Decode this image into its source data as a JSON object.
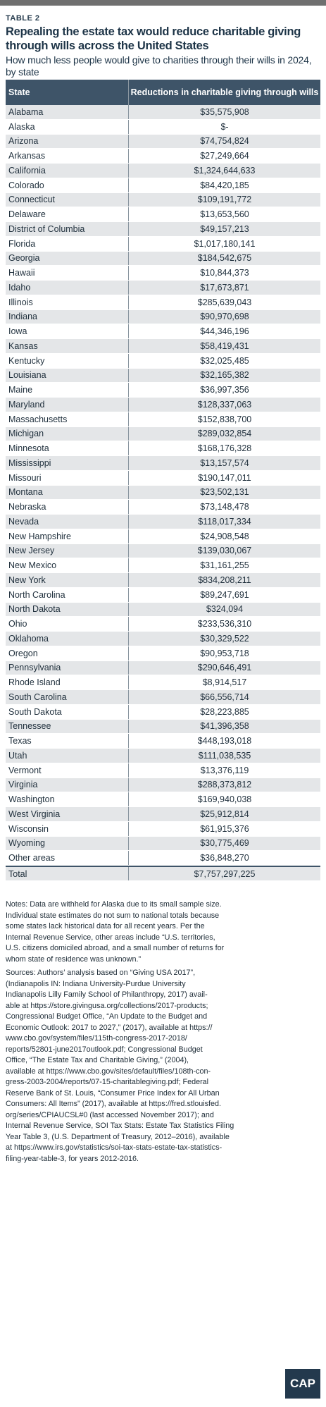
{
  "header": {
    "label": "TABLE 2",
    "title": "Repealing the estate tax would reduce charitable giving through wills across the United States",
    "subtitle": "How much less people would give to charities through their wills in 2024, by state"
  },
  "table": {
    "columns": [
      "State",
      "Reductions in charitable giving through wills"
    ],
    "rows": [
      [
        "Alabama",
        "$35,575,908"
      ],
      [
        "Alaska",
        "$-"
      ],
      [
        "Arizona",
        "$74,754,824"
      ],
      [
        "Arkansas",
        "$27,249,664"
      ],
      [
        "California",
        "$1,324,644,633"
      ],
      [
        "Colorado",
        "$84,420,185"
      ],
      [
        "Connecticut",
        "$109,191,772"
      ],
      [
        "Delaware",
        "$13,653,560"
      ],
      [
        "District of Columbia",
        "$49,157,213"
      ],
      [
        "Florida",
        "$1,017,180,141"
      ],
      [
        "Georgia",
        "$184,542,675"
      ],
      [
        "Hawaii",
        "$10,844,373"
      ],
      [
        "Idaho",
        "$17,673,871"
      ],
      [
        "Illinois",
        "$285,639,043"
      ],
      [
        "Indiana",
        "$90,970,698"
      ],
      [
        "Iowa",
        "$44,346,196"
      ],
      [
        "Kansas",
        "$58,419,431"
      ],
      [
        "Kentucky",
        "$32,025,485"
      ],
      [
        "Louisiana",
        "$32,165,382"
      ],
      [
        "Maine",
        "$36,997,356"
      ],
      [
        "Maryland",
        "$128,337,063"
      ],
      [
        "Massachusetts",
        "$152,838,700"
      ],
      [
        "Michigan",
        "$289,032,854"
      ],
      [
        "Minnesota",
        "$168,176,328"
      ],
      [
        "Mississippi",
        "$13,157,574"
      ],
      [
        "Missouri",
        "$190,147,011"
      ],
      [
        "Montana",
        "$23,502,131"
      ],
      [
        "Nebraska",
        "$73,148,478"
      ],
      [
        "Nevada",
        "$118,017,334"
      ],
      [
        "New Hampshire",
        "$24,908,548"
      ],
      [
        "New Jersey",
        "$139,030,067"
      ],
      [
        "New Mexico",
        "$31,161,255"
      ],
      [
        "New York",
        "$834,208,211"
      ],
      [
        "North Carolina",
        "$89,247,691"
      ],
      [
        "North Dakota",
        "$324,094"
      ],
      [
        "Ohio",
        "$233,536,310"
      ],
      [
        "Oklahoma",
        "$30,329,522"
      ],
      [
        "Oregon",
        "$90,953,718"
      ],
      [
        "Pennsylvania",
        "$290,646,491"
      ],
      [
        "Rhode Island",
        "$8,914,517"
      ],
      [
        "South Carolina",
        "$66,556,714"
      ],
      [
        "South Dakota",
        "$28,223,885"
      ],
      [
        "Tennessee",
        "$41,396,358"
      ],
      [
        "Texas",
        "$448,193,018"
      ],
      [
        "Utah",
        "$111,038,535"
      ],
      [
        "Vermont",
        "$13,376,119"
      ],
      [
        "Virginia",
        "$288,373,812"
      ],
      [
        "Washington",
        "$169,940,038"
      ],
      [
        "West Virginia",
        "$25,912,814"
      ],
      [
        "Wisconsin",
        "$61,915,376"
      ],
      [
        "Wyoming",
        "$30,775,469"
      ],
      [
        "Other areas",
        "$36,848,270"
      ]
    ],
    "total": [
      "Total",
      "$7,757,297,225"
    ]
  },
  "notes": [
    "Notes: Data are withheld for Alaska due to its small sample size.",
    "Individual state estimates do not sum to national totals because",
    "some states lack historical data for all recent years. Per the",
    "Internal Revenue Service, other areas include “U.S. territories,",
    "U.S. citizens domiciled abroad, and a small number of returns for",
    "whom state of residence was unknown.”"
  ],
  "sources": [
    "Sources: Authors’ analysis based on “Giving USA 2017”,",
    "(Indianapolis IN: Indiana University-Purdue University",
    "Indianapolis Lilly Family School of Philanthropy, 2017) avail-",
    "able at https://store.givingusa.org/collections/2017-products;",
    "Congressional Budget Office, “An Update to the Budget and",
    "Economic Outlook: 2017 to 2027,” (2017), available at https://",
    "www.cbo.gov/system/files/115th-congress-2017-2018/",
    "reports/52801-june2017outlook.pdf; Congressional Budget",
    "Office, “The Estate Tax and Charitable Giving,” (2004),",
    "available at https://www.cbo.gov/sites/default/files/108th-con-",
    "gress-2003-2004/reports/07-15-charitablegiving.pdf; Federal",
    "Reserve Bank of St. Louis, “Consumer Price Index for All Urban",
    "Consumers: All Items” (2017), available at https://fred.stlouisfed.",
    "org/series/CPIAUCSL#0 (last accessed November 2017); and",
    "Internal Revenue Service, SOI Tax Stats: Estate Tax Statistics Filing",
    "Year Table 3, (U.S. Department of Treasury, 2012–2016), available",
    "at https://www.irs.gov/statistics/soi-tax-stats-estate-tax-statistics-",
    "filing-year-table-3, for years 2012-2016."
  ],
  "logo": "CAP"
}
